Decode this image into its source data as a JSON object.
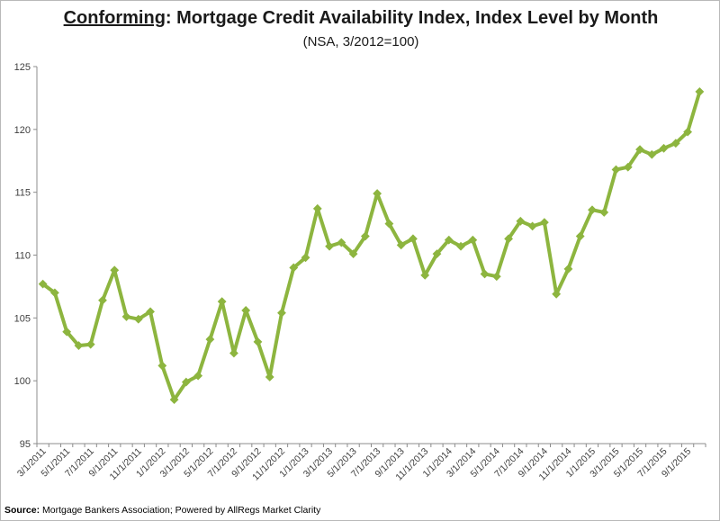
{
  "chart_data": {
    "type": "line",
    "title_part1": "Conforming",
    "title_part2": ": Mortgage Credit Availability Index, Index Level by Month",
    "subtitle": "(NSA, 3/2012=100)",
    "xlabel": "",
    "ylabel": "",
    "ylim": [
      95,
      125
    ],
    "yticks": [
      95,
      100,
      105,
      110,
      115,
      120,
      125
    ],
    "grid": false,
    "legend": "none",
    "line_color": "#8db53f",
    "marker_color": "#8db53f",
    "x": [
      "3/1/2011",
      "4/1/2011",
      "5/1/2011",
      "6/1/2011",
      "7/1/2011",
      "8/1/2011",
      "9/1/2011",
      "10/1/2011",
      "11/1/2011",
      "12/1/2011",
      "1/1/2012",
      "2/1/2012",
      "3/1/2012",
      "4/1/2012",
      "5/1/2012",
      "6/1/2012",
      "7/1/2012",
      "8/1/2012",
      "9/1/2012",
      "10/1/2012",
      "11/1/2012",
      "12/1/2012",
      "1/1/2013",
      "2/1/2013",
      "3/1/2013",
      "4/1/2013",
      "5/1/2013",
      "6/1/2013",
      "7/1/2013",
      "8/1/2013",
      "9/1/2013",
      "10/1/2013",
      "11/1/2013",
      "12/1/2013",
      "1/1/2014",
      "2/1/2014",
      "3/1/2014",
      "4/1/2014",
      "5/1/2014",
      "6/1/2014",
      "7/1/2014",
      "8/1/2014",
      "9/1/2014",
      "10/1/2014",
      "11/1/2014",
      "12/1/2014",
      "1/1/2015",
      "2/1/2015",
      "3/1/2015",
      "4/1/2015",
      "5/1/2015",
      "6/1/2015",
      "7/1/2015",
      "8/1/2015",
      "9/1/2015",
      "10/1/2015"
    ],
    "x_tick_labels": [
      "3/1/2011",
      "5/1/2011",
      "7/1/2011",
      "9/1/2011",
      "11/1/2011",
      "1/1/2012",
      "3/1/2012",
      "5/1/2012",
      "7/1/2012",
      "9/1/2012",
      "11/1/2012",
      "1/1/2013",
      "3/1/2013",
      "5/1/2013",
      "7/1/2013",
      "9/1/2013",
      "11/1/2013",
      "1/1/2014",
      "3/1/2014",
      "5/1/2014",
      "7/1/2014",
      "9/1/2014",
      "11/1/2014",
      "1/1/2015",
      "3/1/2015",
      "5/1/2015",
      "7/1/2015",
      "9/1/2015"
    ],
    "values": [
      107.7,
      107.0,
      103.9,
      102.8,
      102.9,
      106.4,
      108.8,
      105.1,
      104.9,
      105.5,
      101.2,
      98.5,
      99.9,
      100.4,
      103.3,
      106.3,
      102.2,
      105.6,
      103.1,
      100.3,
      105.4,
      109.0,
      109.8,
      113.7,
      110.7,
      111.0,
      110.1,
      111.5,
      114.9,
      112.5,
      110.8,
      111.3,
      108.4,
      110.1,
      111.2,
      110.7,
      111.2,
      108.5,
      108.3,
      111.3,
      112.7,
      112.3,
      112.6,
      106.9,
      108.9,
      111.5,
      113.6,
      113.4,
      116.8,
      117.0,
      118.4,
      118.0,
      118.5,
      118.9,
      119.8,
      123.0
    ]
  },
  "source": {
    "label": "Source:",
    "text": " Mortgage Bankers Association; Powered by AllRegs Market Clarity"
  }
}
